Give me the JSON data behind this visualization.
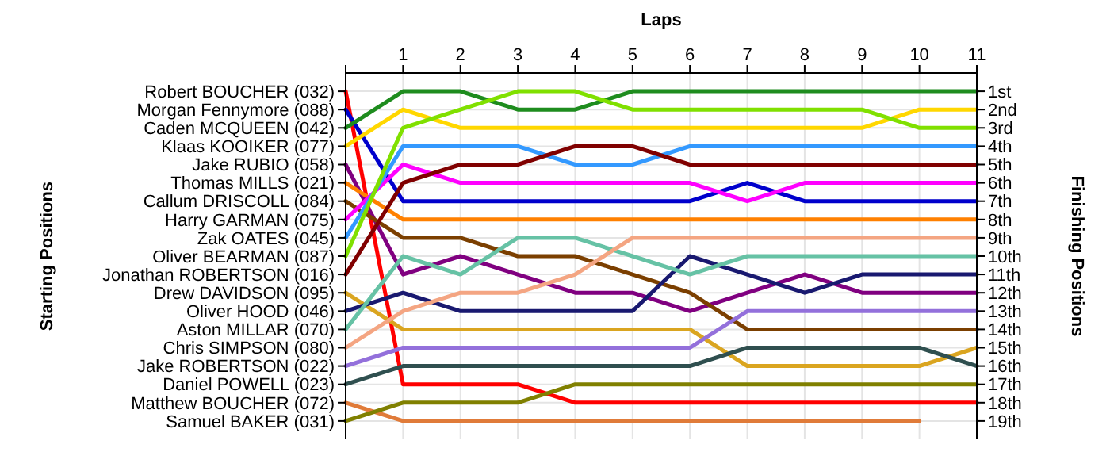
{
  "chart_data": {
    "type": "line",
    "xlabel": "Laps",
    "annotations": [
      "Starting Positions"
    ],
    "ylabel": "Finishing Positions",
    "legend": false,
    "x": [
      0,
      1,
      2,
      3,
      4,
      5,
      6,
      7,
      8,
      9,
      10,
      11
    ],
    "xlim": [
      0,
      11
    ],
    "xticks": [
      {
        "value": 0,
        "label": null
      },
      1,
      2,
      3,
      4,
      5,
      6,
      7,
      8,
      9,
      10,
      11
    ],
    "ylim": [
      20,
      0
    ],
    "yticks": [
      {
        "value": 1,
        "label": "1st"
      },
      {
        "value": 2,
        "label": "2nd"
      },
      {
        "value": 3,
        "label": "3rd"
      },
      {
        "value": 4,
        "label": "4th"
      },
      {
        "value": 5,
        "label": "5th"
      },
      {
        "value": 6,
        "label": "6th"
      },
      {
        "value": 7,
        "label": "7th"
      },
      {
        "value": 8,
        "label": "8th"
      },
      {
        "value": 9,
        "label": "9th"
      },
      {
        "value": 10,
        "label": "10th"
      },
      {
        "value": 11,
        "label": "11th"
      },
      {
        "value": 12,
        "label": "12th"
      },
      {
        "value": 13,
        "label": "13th"
      },
      {
        "value": 14,
        "label": "14th"
      },
      {
        "value": 15,
        "label": "15th"
      },
      {
        "value": 16,
        "label": "16th"
      },
      {
        "value": 17,
        "label": "17th"
      },
      {
        "value": 18,
        "label": "18th"
      },
      {
        "value": 19,
        "label": "19th"
      }
    ],
    "grid": true,
    "marker": "none",
    "line_style": "solid",
    "series": [
      {
        "name": "Robert BOUCHER (032)",
        "color": "#ff0000",
        "values": [
          1,
          17,
          17,
          17,
          18,
          18,
          18,
          18,
          18,
          18,
          18,
          18
        ]
      },
      {
        "name": "Morgan Fennymore (088)",
        "color": "#0000cc",
        "values": [
          2,
          7,
          7,
          7,
          7,
          7,
          7,
          6,
          7,
          7,
          7,
          7
        ]
      },
      {
        "name": "Caden MCQUEEN (042)",
        "color": "#1e8c1e",
        "values": [
          3,
          1,
          1,
          2,
          2,
          1,
          1,
          1,
          1,
          1,
          1,
          1
        ]
      },
      {
        "name": "Klaas KOOIKER (077)",
        "color": "#ffd700",
        "values": [
          4,
          2,
          3,
          3,
          3,
          3,
          3,
          3,
          3,
          3,
          2,
          2
        ]
      },
      {
        "name": "Jake RUBIO (058)",
        "color": "#800080",
        "values": [
          5,
          11,
          10,
          11,
          12,
          12,
          13,
          12,
          11,
          12,
          12,
          12
        ]
      },
      {
        "name": "Thomas MILLS (021)",
        "color": "#ff8000",
        "values": [
          6,
          8,
          8,
          8,
          8,
          8,
          8,
          8,
          8,
          8,
          8,
          8
        ]
      },
      {
        "name": "Callum DRISCOLL (084)",
        "color": "#7b3f00",
        "values": [
          7,
          9,
          9,
          10,
          10,
          11,
          12,
          14,
          14,
          14,
          14,
          14
        ]
      },
      {
        "name": "Harry GARMAN (075)",
        "color": "#ff00ff",
        "values": [
          8,
          5,
          6,
          6,
          6,
          6,
          6,
          7,
          6,
          6,
          6,
          6
        ]
      },
      {
        "name": "Zak OATES (045)",
        "color": "#3399ff",
        "values": [
          9,
          4,
          4,
          4,
          5,
          5,
          4,
          4,
          4,
          4,
          4,
          4
        ]
      },
      {
        "name": "Oliver BEARMAN (087)",
        "color": "#80e000",
        "values": [
          10,
          3,
          2,
          1,
          1,
          2,
          2,
          2,
          2,
          2,
          3,
          3
        ]
      },
      {
        "name": "Jonathan ROBERTSON (016)",
        "color": "#800000",
        "values": [
          11,
          6,
          5,
          5,
          4,
          4,
          5,
          5,
          5,
          5,
          5,
          5
        ]
      },
      {
        "name": "Drew DAVIDSON (095)",
        "color": "#daa520",
        "values": [
          12,
          14,
          14,
          14,
          14,
          14,
          14,
          16,
          16,
          16,
          16,
          15
        ]
      },
      {
        "name": "Oliver HOOD (046)",
        "color": "#191970",
        "values": [
          13,
          12,
          13,
          13,
          13,
          13,
          10,
          11,
          12,
          11,
          11,
          11
        ]
      },
      {
        "name": "Aston MILLAR (070)",
        "color": "#66c2a5",
        "values": [
          14,
          10,
          11,
          9,
          9,
          10,
          11,
          10,
          10,
          10,
          10,
          10
        ]
      },
      {
        "name": "Chris SIMPSON (080)",
        "color": "#f4a582",
        "values": [
          15,
          13,
          12,
          12,
          11,
          9,
          9,
          9,
          9,
          9,
          9,
          9
        ]
      },
      {
        "name": "Jake ROBERTSON (022)",
        "color": "#9370db",
        "values": [
          16,
          15,
          15,
          15,
          15,
          15,
          15,
          13,
          13,
          13,
          13,
          13
        ]
      },
      {
        "name": "Daniel POWELL (023)",
        "color": "#2f4f4f",
        "values": [
          17,
          16,
          16,
          16,
          16,
          16,
          16,
          15,
          15,
          15,
          15,
          16
        ]
      },
      {
        "name": "Matthew BOUCHER (072)",
        "color": "#e07b39",
        "values": [
          18,
          19,
          19,
          19,
          19,
          19,
          19,
          19,
          19,
          19,
          19,
          null
        ]
      },
      {
        "name": "Samuel BAKER (031)",
        "color": "#808000",
        "values": [
          19,
          18,
          18,
          18,
          17,
          17,
          17,
          17,
          17,
          17,
          17,
          17
        ]
      }
    ]
  }
}
